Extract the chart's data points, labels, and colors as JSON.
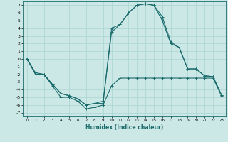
{
  "xlabel": "Humidex (Indice chaleur)",
  "bg_color": "#cce8e6",
  "grid_color": "#b0d8d5",
  "line_color": "#1a6b6b",
  "xlim": [
    -0.5,
    23.5
  ],
  "ylim": [
    -7.5,
    7.5
  ],
  "xticks": [
    0,
    1,
    2,
    3,
    4,
    5,
    6,
    7,
    8,
    9,
    10,
    11,
    12,
    13,
    14,
    15,
    16,
    17,
    18,
    19,
    20,
    21,
    22,
    23
  ],
  "yticks": [
    -7,
    -6,
    -5,
    -4,
    -3,
    -2,
    -1,
    0,
    1,
    2,
    3,
    4,
    5,
    6,
    7
  ],
  "series": [
    {
      "x": [
        0,
        1,
        2,
        3,
        4,
        5,
        6,
        7,
        8,
        9,
        10,
        11,
        12,
        13,
        14,
        15,
        16,
        17,
        18,
        19,
        20,
        21,
        22,
        23
      ],
      "y": [
        0,
        -1.8,
        -2,
        -3.5,
        -5,
        -5,
        -5.5,
        -6.5,
        -6.3,
        -6,
        -3.5,
        -2.5,
        -2.5,
        -2.5,
        -2.5,
        -2.5,
        -2.5,
        -2.5,
        -2.5,
        -2.5,
        -2.5,
        -2.5,
        -2.5,
        -4.8
      ]
    },
    {
      "x": [
        0,
        1,
        2,
        3,
        4,
        5,
        6,
        7,
        8,
        9,
        10,
        11,
        12,
        13,
        14,
        15,
        16,
        17,
        18,
        19,
        20,
        21,
        22,
        23
      ],
      "y": [
        0,
        -2,
        -2,
        -3.3,
        -4.5,
        -4.8,
        -5.2,
        -6,
        -5.8,
        -5.5,
        3.5,
        4.5,
        6.0,
        7.0,
        7.2,
        7.0,
        5.5,
        2.2,
        1.5,
        -1.3,
        -1.3,
        -2.2,
        -2.3,
        -4.7
      ]
    },
    {
      "x": [
        0,
        1,
        2,
        3,
        4,
        5,
        6,
        7,
        8,
        9,
        10,
        11,
        12,
        13,
        14,
        15,
        16,
        17,
        18,
        19,
        20,
        21,
        22,
        23
      ],
      "y": [
        0,
        -2,
        -2,
        -3.3,
        -4.5,
        -4.8,
        -5.2,
        -6,
        -5.8,
        -5.8,
        4.0,
        4.5,
        6.0,
        7.0,
        7.2,
        7.0,
        5.0,
        2.0,
        1.5,
        -1.3,
        -1.3,
        -2.2,
        -2.3,
        -4.7
      ]
    }
  ]
}
